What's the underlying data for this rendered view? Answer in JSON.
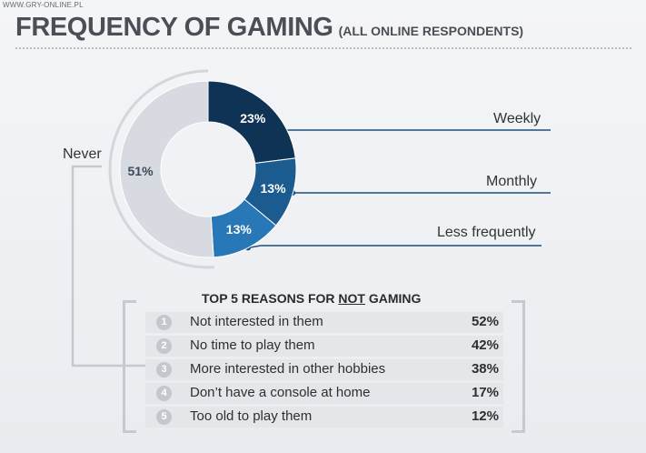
{
  "watermark": "WWW.GRY-ONLINE.PL",
  "title": "FREQUENCY OF GAMING",
  "subtitle": "(ALL ONLINE RESPONDENTS)",
  "colors": {
    "weekly": "#0f3355",
    "monthly": "#1b5b8f",
    "less_frequently": "#2878b8",
    "never": "#d7dbe1",
    "connector": "#1c4f7e",
    "bracket": "#c6c9ce"
  },
  "chart_data": [
    {
      "type": "pie",
      "title": "FREQUENCY OF GAMING",
      "subtitle": "(ALL ONLINE RESPONDENTS)",
      "slices": [
        {
          "label": "Weekly",
          "value": 23,
          "display": "23%"
        },
        {
          "label": "Monthly",
          "value": 13,
          "display": "13%"
        },
        {
          "label": "Less frequently",
          "value": 13,
          "display": "13%"
        },
        {
          "label": "Never",
          "value": 51,
          "display": "51%"
        }
      ]
    },
    {
      "type": "table",
      "title_prefix": "TOP 5 REASONS FOR ",
      "title_emphasis": "NOT",
      "title_suffix": " GAMING",
      "rows": [
        {
          "rank": "1",
          "reason": "Not interested in them",
          "value": "52%"
        },
        {
          "rank": "2",
          "reason": "No time to play them",
          "value": "42%"
        },
        {
          "rank": "3",
          "reason": "More interested in other hobbies",
          "value": "38%"
        },
        {
          "rank": "4",
          "reason": "Don’t have a console at home",
          "value": "17%"
        },
        {
          "rank": "5",
          "reason": "Too old to play them",
          "value": "12%"
        }
      ]
    }
  ]
}
